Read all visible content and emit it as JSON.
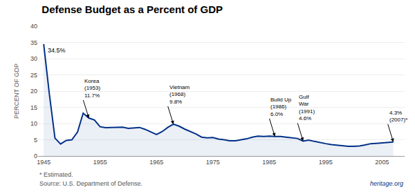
{
  "chart_data": {
    "type": "line",
    "title": "Defense Budget as a Percent of GDP",
    "ylabel": "PERCENT OF GDP",
    "color": "#003087",
    "xlim": [
      1944,
      2009
    ],
    "ylim": [
      0,
      40
    ],
    "yticks": [
      0,
      5,
      10,
      15,
      20,
      25,
      30,
      35,
      40
    ],
    "xticks": [
      1945,
      1955,
      1965,
      1975,
      1985,
      1995,
      2005
    ],
    "grid": true,
    "footer_note": "* Estimated.",
    "source": "Source: U.S. Department of Defense.",
    "watermark": "heritage.org",
    "annotations": [
      {
        "text": "34.5%",
        "x": 1945,
        "y": 34.5,
        "arrow": false
      },
      {
        "text": "Korea\n(1953)\n11.7%",
        "x": 1953,
        "y": 11.7,
        "arrow": true
      },
      {
        "text": "Vietnam\n(1968)\n9.8%",
        "x": 1968,
        "y": 9.8,
        "arrow": true
      },
      {
        "text": "Build Up\n(1986)\n6.0%",
        "x": 1986,
        "y": 6.0,
        "arrow": true
      },
      {
        "text": "Gulf\nWar\n(1991)\n4.6%",
        "x": 1991,
        "y": 4.6,
        "arrow": true
      },
      {
        "text": "4.3%\n(2007)*",
        "x": 2007,
        "y": 4.3,
        "arrow": true
      }
    ],
    "x": [
      1945,
      1946,
      1947,
      1948,
      1949,
      1950,
      1951,
      1952,
      1953,
      1954,
      1955,
      1956,
      1957,
      1958,
      1959,
      1960,
      1961,
      1962,
      1963,
      1964,
      1965,
      1966,
      1967,
      1968,
      1969,
      1970,
      1971,
      1972,
      1973,
      1974,
      1975,
      1976,
      1977,
      1978,
      1979,
      1980,
      1981,
      1982,
      1983,
      1984,
      1985,
      1986,
      1987,
      1988,
      1989,
      1990,
      1991,
      1992,
      1993,
      1994,
      1995,
      1996,
      1997,
      1998,
      1999,
      2000,
      2001,
      2002,
      2003,
      2004,
      2005,
      2006,
      2007
    ],
    "values": [
      34.5,
      19.2,
      5.5,
      3.7,
      4.8,
      5.0,
      7.4,
      13.2,
      11.7,
      11.1,
      9.0,
      8.7,
      8.8,
      8.8,
      8.9,
      8.5,
      8.6,
      8.8,
      8.2,
      7.4,
      6.6,
      7.5,
      8.8,
      9.8,
      9.2,
      8.3,
      7.5,
      6.8,
      5.8,
      5.6,
      5.7,
      5.2,
      5.0,
      4.7,
      4.7,
      5.0,
      5.3,
      5.8,
      6.1,
      6.0,
      6.1,
      6.0,
      6.0,
      5.8,
      5.6,
      5.4,
      4.6,
      4.9,
      4.5,
      4.1,
      3.8,
      3.5,
      3.3,
      3.1,
      3.0,
      3.0,
      3.1,
      3.4,
      3.8,
      3.9,
      4.0,
      4.1,
      4.3
    ]
  }
}
